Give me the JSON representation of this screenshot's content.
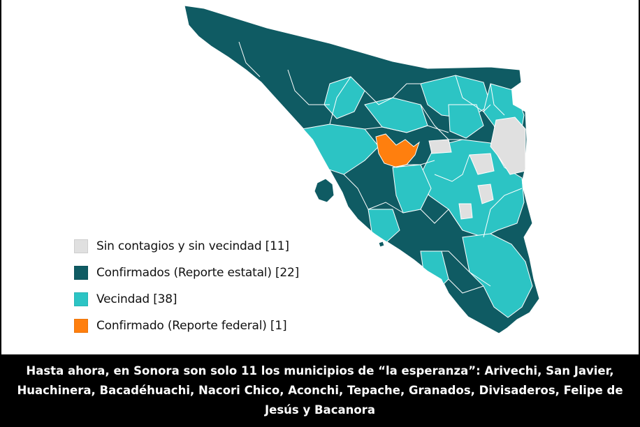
{
  "colors": {
    "sin_contagios": "#e0e0e0",
    "confirmados_estatal": "#0f5b63",
    "vecindad": "#2cc4c4",
    "confirmado_federal": "#ff7f0e",
    "border": "#ffffff",
    "caption_bg": "#000000",
    "caption_text": "#ffffff"
  },
  "legend": {
    "items": [
      {
        "label": "Sin contagios y sin vecindad [11]",
        "color": "#e0e0e0",
        "count": 11
      },
      {
        "label": "Confirmados (Reporte estatal) [22]",
        "color": "#0f5b63",
        "count": 22
      },
      {
        "label": "Vecindad [38]",
        "color": "#2cc4c4",
        "count": 38
      },
      {
        "label": "Confirmado (Reporte federal) [1]",
        "color": "#ff7f0e",
        "count": 1
      }
    ]
  },
  "caption": {
    "text": "Hasta ahora, en Sonora son solo 11 los municipios de “la esperanza”: Arivechi, San Javier, Huachinera, Bacadéhuachi, Nacori Chico, Aconchi, Tepache, Granados, Divisaderos, Felipe de Jesús y Bacanora"
  }
}
